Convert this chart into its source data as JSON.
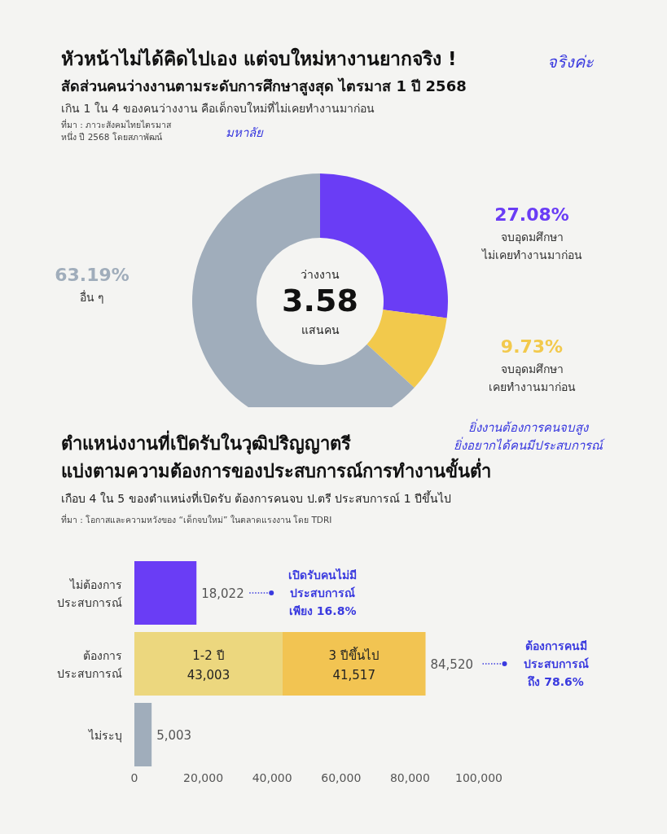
{
  "chart_data": [
    {
      "type": "donut",
      "title": "หัวหน้าไม่ได้คิดไปเอง แต่จบใหม่หางานยากจริง !",
      "subtitle": "สัดส่วนคนว่างงานตามระดับการศึกษาสูงสุด ไตรมาส 1 ปี 2568\nเกิน 1 ใน 4 ของคนว่างงาน คือเด็กจบใหม่ที่ไม่เคยทำงานมาก่อน",
      "annotations": [
        "จริงค่ะ",
        "มหาลัย",
        "ที่มา : ภาวะสังคมไทยไตรมาส\nหนึ่ง ปี 2568 โดยสภาพัฒน์",
        "ว่างงาน",
        "3.58",
        "แสนคน"
      ],
      "categories": [
        "จบอุดมศึกษา\nไม่เคยทำงานมาก่อน",
        "จบอุดมศึกษา\nเคยทำงานมาก่อน",
        "อื่น ๆ"
      ],
      "values": [
        27.08,
        9.73,
        63.19
      ],
      "value_labels": [
        "27.08%",
        "9.73%",
        "63.19%"
      ],
      "colors": [
        "#6a3df5",
        "#f2c94c",
        "#a0adbb"
      ]
    },
    {
      "type": "bar",
      "orientation": "horizontal",
      "stacked": true,
      "title": "ตำแหน่งงานที่เปิดรับในวุฒิปริญญาตรี\nแบ่งตามความต้องการของประสบการณ์การทำงานขั้นต่ำ",
      "subtitle": "เกือบ 4 ใน 5 ของตำแหน่งที่เปิดรับ ต้องการคนจบ ป.ตรี ประสบการณ์ 1 ปีขึ้นไป",
      "annotations": [
        "ยิ่งงานต้องการคนจบสูง\nยิ่งอยากได้คนมีประสบการณ์",
        "ที่มา : โอกาสและความหวังของ “เด็กจบใหม่” ในตลาดแรงงาน โดย TDRI",
        "เปิดรับคนไม่มี\nประสบการณ์\nเพียง 16.8%",
        "ต้องการคนมี\nประสบการณ์\nถึง 78.6%"
      ],
      "categories": [
        "ไม่ต้องการ\nประสบการณ์",
        "ต้องการ\nประสบการณ์",
        "ไม่ระบุ"
      ],
      "series": [
        {
          "color": "#6a3df5",
          "values": [
            18022,
            null,
            null
          ]
        },
        {
          "name": "1-2 ปี",
          "color": "#ecd77e",
          "values": [
            null,
            43003,
            null
          ],
          "value_labels": [
            null,
            "43,003",
            null
          ]
        },
        {
          "name": "3 ปีขึ้นไป",
          "color": "#f2c452",
          "values": [
            null,
            41517,
            null
          ],
          "value_labels": [
            null,
            "41,517",
            null
          ]
        },
        {
          "color": "#a0adbb",
          "values": [
            null,
            null,
            5003
          ]
        }
      ],
      "totals": [
        "18,022",
        "84,520",
        "5,003"
      ],
      "xlim": [
        0,
        100000
      ],
      "xticks": [
        0,
        {
          "value": 20000,
          "label": "20,000"
        },
        {
          "value": 40000,
          "label": "40,000"
        },
        {
          "value": 60000,
          "label": "60,000"
        },
        {
          "value": 80000,
          "label": "80,000"
        },
        {
          "value": 100000,
          "label": "100,000"
        }
      ]
    }
  ]
}
